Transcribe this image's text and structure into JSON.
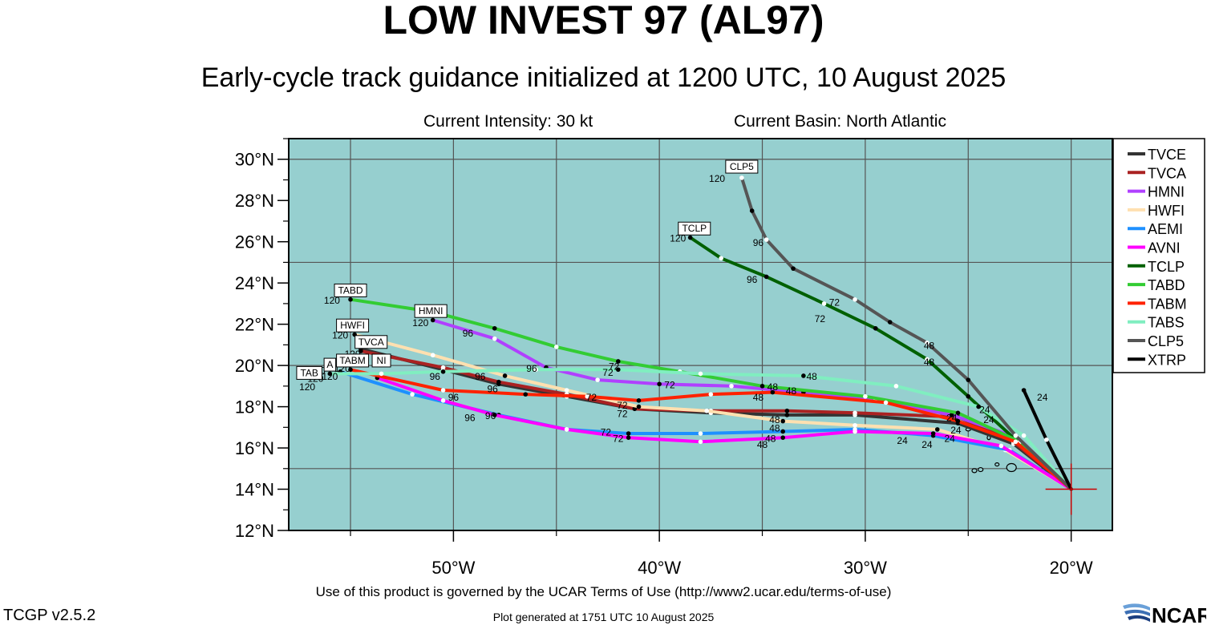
{
  "header": {
    "title": "LOW INVEST 97 (AL97)",
    "subtitle": "Early-cycle track guidance initialized at 1200 UTC, 10 August 2025",
    "intensity": "Current Intensity: 30 kt",
    "basin": "Current Basin: North Atlantic"
  },
  "footer": {
    "terms": "Use of this product is governed by the UCAR Terms of Use (http://www2.ucar.edu/terms-of-use)",
    "version": "TCGP v2.5.2",
    "generated": "Plot generated at 1751 UTC   10 August 2025",
    "logo_text": "NCAR"
  },
  "colors": {
    "ocean": "#96cfcf",
    "land": "#96cfcf",
    "grid": "#555555"
  },
  "chart_data": {
    "type": "line",
    "xlim": [
      -58,
      -18
    ],
    "ylim": [
      12,
      31
    ],
    "x_ticks": [
      -50,
      -40,
      -30,
      -20
    ],
    "x_tick_labels": [
      "50°W",
      "40°W",
      "30°W",
      "20°W"
    ],
    "y_ticks": [
      12,
      14,
      16,
      18,
      20,
      22,
      24,
      26,
      28,
      30
    ],
    "y_tick_labels": [
      "12°N",
      "14°N",
      "16°N",
      "18°N",
      "20°N",
      "22°N",
      "24°N",
      "26°N",
      "28°N",
      "30°N"
    ],
    "grid": true,
    "legend_position": "right",
    "initial_position": [
      -20.0,
      14.0
    ],
    "series": [
      {
        "name": "TVCE",
        "color": "#333333",
        "points": [
          [
            -20.0,
            14.0
          ],
          [
            -22.8,
            16.2
          ],
          [
            -25.5,
            17.2
          ],
          [
            -30.5,
            17.6
          ],
          [
            -33.8,
            17.6
          ],
          [
            -37.5,
            17.7
          ],
          [
            -41.2,
            17.9
          ],
          [
            -44.5,
            18.5
          ],
          [
            -47.8,
            19.1
          ],
          [
            -50.5,
            19.8
          ],
          [
            -54.5,
            20.8
          ]
        ]
      },
      {
        "name": "TVCA",
        "color": "#aa2222",
        "points": [
          [
            -20.0,
            14.0
          ],
          [
            -22.8,
            16.3
          ],
          [
            -25.5,
            17.5
          ],
          [
            -30.5,
            17.7
          ],
          [
            -33.8,
            17.8
          ],
          [
            -37.5,
            17.8
          ],
          [
            -41.2,
            17.9
          ],
          [
            -44.5,
            18.6
          ],
          [
            -47.8,
            19.2
          ],
          [
            -50.5,
            19.9
          ],
          [
            -54.5,
            20.7
          ]
        ]
      },
      {
        "name": "HMNI",
        "color": "#b040ff",
        "points": [
          [
            -20.0,
            14.0
          ],
          [
            -22.6,
            16.5
          ],
          [
            -25.8,
            17.6
          ],
          [
            -29.5,
            18.3
          ],
          [
            -33.0,
            18.7
          ],
          [
            -36.5,
            19.0
          ],
          [
            -40.0,
            19.1
          ],
          [
            -43.0,
            19.3
          ],
          [
            -45.5,
            19.9
          ],
          [
            -48.0,
            21.3
          ],
          [
            -51.0,
            22.2
          ]
        ]
      },
      {
        "name": "HWFI",
        "color": "#ffe0b0",
        "points": [
          [
            -20.0,
            14.0
          ],
          [
            -23.2,
            15.9
          ],
          [
            -26.5,
            16.9
          ],
          [
            -30.5,
            17.1
          ],
          [
            -34.0,
            17.3
          ],
          [
            -37.7,
            17.8
          ],
          [
            -41.0,
            18.0
          ],
          [
            -44.5,
            18.8
          ],
          [
            -47.5,
            19.5
          ],
          [
            -51.0,
            20.5
          ],
          [
            -54.8,
            21.5
          ]
        ]
      },
      {
        "name": "AEMI",
        "color": "#1e90ff",
        "points": [
          [
            -20.0,
            14.0
          ],
          [
            -23.0,
            15.9
          ],
          [
            -26.7,
            16.6
          ],
          [
            -30.5,
            16.9
          ],
          [
            -34.0,
            16.8
          ],
          [
            -38.0,
            16.7
          ],
          [
            -41.5,
            16.7
          ],
          [
            -44.5,
            16.9
          ],
          [
            -47.8,
            17.6
          ],
          [
            -52.0,
            18.6
          ],
          [
            -55.5,
            19.7
          ]
        ]
      },
      {
        "name": "AVNI",
        "color": "#ff00ff",
        "points": [
          [
            -20.0,
            14.0
          ],
          [
            -23.4,
            16.1
          ],
          [
            -26.7,
            16.7
          ],
          [
            -30.5,
            16.8
          ],
          [
            -34.0,
            16.5
          ],
          [
            -38.0,
            16.3
          ],
          [
            -41.5,
            16.5
          ],
          [
            -44.5,
            16.9
          ],
          [
            -48.0,
            17.6
          ],
          [
            -50.5,
            18.3
          ],
          [
            -53.7,
            19.4
          ]
        ]
      },
      {
        "name": "TCLP",
        "color": "#006000",
        "points": [
          [
            -20.0,
            14.0
          ],
          [
            -22.7,
            16.4
          ],
          [
            -25.0,
            18.5
          ],
          [
            -27.0,
            20.3
          ],
          [
            -29.5,
            21.8
          ],
          [
            -32.0,
            23.0
          ],
          [
            -34.8,
            24.3
          ],
          [
            -37.0,
            25.2
          ],
          [
            -38.5,
            26.2
          ]
        ]
      },
      {
        "name": "TABD",
        "color": "#33cc33",
        "points": [
          [
            -20.0,
            14.0
          ],
          [
            -22.5,
            16.3
          ],
          [
            -25.5,
            17.7
          ],
          [
            -30.0,
            18.5
          ],
          [
            -35.0,
            19.0
          ],
          [
            -39.0,
            19.7
          ],
          [
            -42.0,
            20.2
          ],
          [
            -45.0,
            20.9
          ],
          [
            -48.0,
            21.8
          ],
          [
            -51.0,
            22.6
          ],
          [
            -55.0,
            23.2
          ]
        ]
      },
      {
        "name": "TABM",
        "color": "#ff2200",
        "points": [
          [
            -20.0,
            14.0
          ],
          [
            -22.7,
            16.3
          ],
          [
            -25.5,
            17.3
          ],
          [
            -29.0,
            18.2
          ],
          [
            -34.5,
            18.7
          ],
          [
            -37.5,
            18.6
          ],
          [
            -41.0,
            18.3
          ],
          [
            -43.5,
            18.5
          ],
          [
            -46.5,
            18.6
          ],
          [
            -50.5,
            18.8
          ],
          [
            -55.0,
            19.8
          ]
        ]
      },
      {
        "name": "TABS",
        "color": "#80eec0",
        "points": [
          [
            -20.0,
            14.0
          ],
          [
            -22.3,
            16.6
          ],
          [
            -24.5,
            18.0
          ],
          [
            -28.5,
            19.0
          ],
          [
            -33.0,
            19.5
          ],
          [
            -38.0,
            19.6
          ],
          [
            -42.0,
            19.8
          ],
          [
            -46.0,
            19.8
          ],
          [
            -50.5,
            19.7
          ],
          [
            -53.5,
            19.6
          ],
          [
            -56.0,
            19.6
          ]
        ]
      },
      {
        "name": "CLP5",
        "color": "#555555",
        "points": [
          [
            -20.0,
            14.0
          ],
          [
            -22.7,
            16.6
          ],
          [
            -25.0,
            19.3
          ],
          [
            -27.0,
            21.1
          ],
          [
            -28.8,
            22.1
          ],
          [
            -30.5,
            23.2
          ],
          [
            -33.5,
            24.7
          ],
          [
            -34.8,
            26.1
          ],
          [
            -35.5,
            27.5
          ],
          [
            -36.0,
            29.1
          ]
        ]
      },
      {
        "name": "XTRP",
        "color": "#000000",
        "points": [
          [
            -20.0,
            14.0
          ],
          [
            -21.2,
            16.4
          ],
          [
            -22.3,
            18.8
          ]
        ]
      }
    ],
    "hour_labels": [
      [
        "24",
        -21.4,
        18.3
      ],
      [
        "24",
        -24.2,
        17.7
      ],
      [
        "24",
        -24.0,
        17.2
      ],
      [
        "24",
        -25.8,
        17.3
      ],
      [
        "24",
        -25.6,
        16.7
      ],
      [
        "24",
        -25.9,
        16.3
      ],
      [
        "24",
        -27.0,
        16.0
      ],
      [
        "24",
        -28.2,
        16.2
      ],
      [
        "48",
        -26.9,
        20.8
      ],
      [
        "48",
        -26.9,
        20.0
      ],
      [
        "48",
        -33.6,
        18.6
      ],
      [
        "48",
        -34.5,
        18.8
      ],
      [
        "48",
        -32.6,
        19.3
      ],
      [
        "48",
        -35.2,
        18.3
      ],
      [
        "48",
        -34.4,
        17.2
      ],
      [
        "48",
        -34.4,
        16.8
      ],
      [
        "48",
        -34.6,
        16.3
      ],
      [
        "48",
        -35.0,
        16.0
      ],
      [
        "72",
        -31.5,
        22.9
      ],
      [
        "72",
        -32.2,
        22.1
      ],
      [
        "72",
        -42.2,
        19.8
      ],
      [
        "72",
        -42.5,
        19.5
      ],
      [
        "72",
        -39.5,
        18.9
      ],
      [
        "72",
        -43.3,
        18.3
      ],
      [
        "72",
        -41.8,
        17.9
      ],
      [
        "72",
        -41.8,
        17.5
      ],
      [
        "72",
        -42.6,
        16.6
      ],
      [
        "72",
        -42.0,
        16.3
      ],
      [
        "96",
        -35.2,
        25.8
      ],
      [
        "96",
        -35.5,
        24.0
      ],
      [
        "96",
        -49.3,
        21.4
      ],
      [
        "96",
        -46.2,
        19.7
      ],
      [
        "96",
        -48.7,
        19.3
      ],
      [
        "96",
        -50.9,
        19.3
      ],
      [
        "96",
        -48.1,
        18.7
      ],
      [
        "96",
        -50.0,
        18.3
      ],
      [
        "96",
        -49.2,
        17.3
      ],
      [
        "96",
        -48.2,
        17.4
      ],
      [
        "120",
        -37.2,
        28.9
      ],
      [
        "120",
        -39.1,
        26.0
      ],
      [
        "120",
        -51.6,
        21.9
      ],
      [
        "120",
        -55.9,
        23.0
      ],
      [
        "120",
        -55.5,
        21.3
      ],
      [
        "120",
        -54.9,
        20.4
      ],
      [
        "120",
        -55.4,
        19.7
      ],
      [
        "120",
        -56.7,
        19.2
      ],
      [
        "120",
        -57.1,
        18.8
      ],
      [
        "120",
        -56.0,
        19.3
      ],
      [
        "120",
        -56.6,
        19.6
      ]
    ],
    "model_boxes": [
      [
        "CLP5",
        -36.0,
        29.6
      ],
      [
        "TCLP",
        -38.3,
        26.6
      ],
      [
        "TABD",
        -55.0,
        23.6
      ],
      [
        "HMNI",
        -51.1,
        22.6
      ],
      [
        "HWFI",
        -54.9,
        21.9
      ],
      [
        "TVCA",
        -54.0,
        21.1
      ],
      [
        "A",
        -56.0,
        20.0
      ],
      [
        "TABM",
        -54.9,
        20.2
      ],
      [
        "NI",
        -53.5,
        20.2
      ],
      [
        "TAB",
        -57.0,
        19.6
      ]
    ]
  }
}
